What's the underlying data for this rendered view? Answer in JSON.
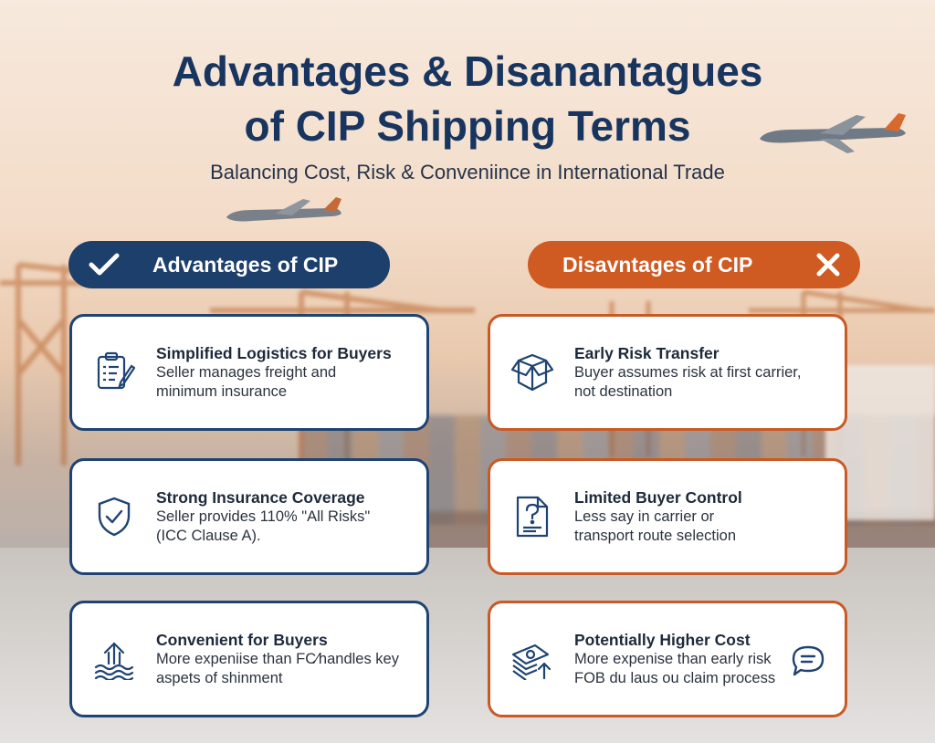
{
  "title_line1": "Advantages & Disanantagues",
  "title_line2": "of CIP Shipping Terms",
  "subtitle": "Balancing Cost, Risk & Conveniince in International Trade",
  "colors": {
    "navy": "#1c3f6b",
    "orange": "#cf5a22"
  },
  "advantages": {
    "header": "Advantages of CIP",
    "header_icon": "check-icon",
    "items": [
      {
        "icon": "clipboard-icon",
        "title": "Simplified Logistics for Buyers",
        "line1": "Seller manages freight and",
        "line2": "minimum insurance"
      },
      {
        "icon": "shield-check-icon",
        "title": "Strong Insurance Coverage",
        "line1": "Seller provides 110% \"All Risks\"",
        "line2": "(ICC Clause A)."
      },
      {
        "icon": "waves-arrow-icon",
        "title": "Convenient for Buyers",
        "line1": "More expeniise than FC∕handles key",
        "line2": "aspets of shinment"
      }
    ]
  },
  "disadvantages": {
    "header": "Disavntages of CIP",
    "header_icon": "x-icon",
    "items": [
      {
        "icon": "open-box-icon",
        "title": "Early Risk Transfer",
        "line1": "Buyer assumes risk at first carrier,",
        "line2": "not destination"
      },
      {
        "icon": "question-document-icon",
        "title": "Limited Buyer Control",
        "line1": "Less say in carrier or",
        "line2": "transport route selection"
      },
      {
        "icon": "money-stack-icon",
        "title": "Potentially Higher Cost",
        "line1": "More expenise than early risk",
        "line2": "FOB du laus ou claim process",
        "side_icon": "chat-bubble-icon"
      }
    ]
  }
}
